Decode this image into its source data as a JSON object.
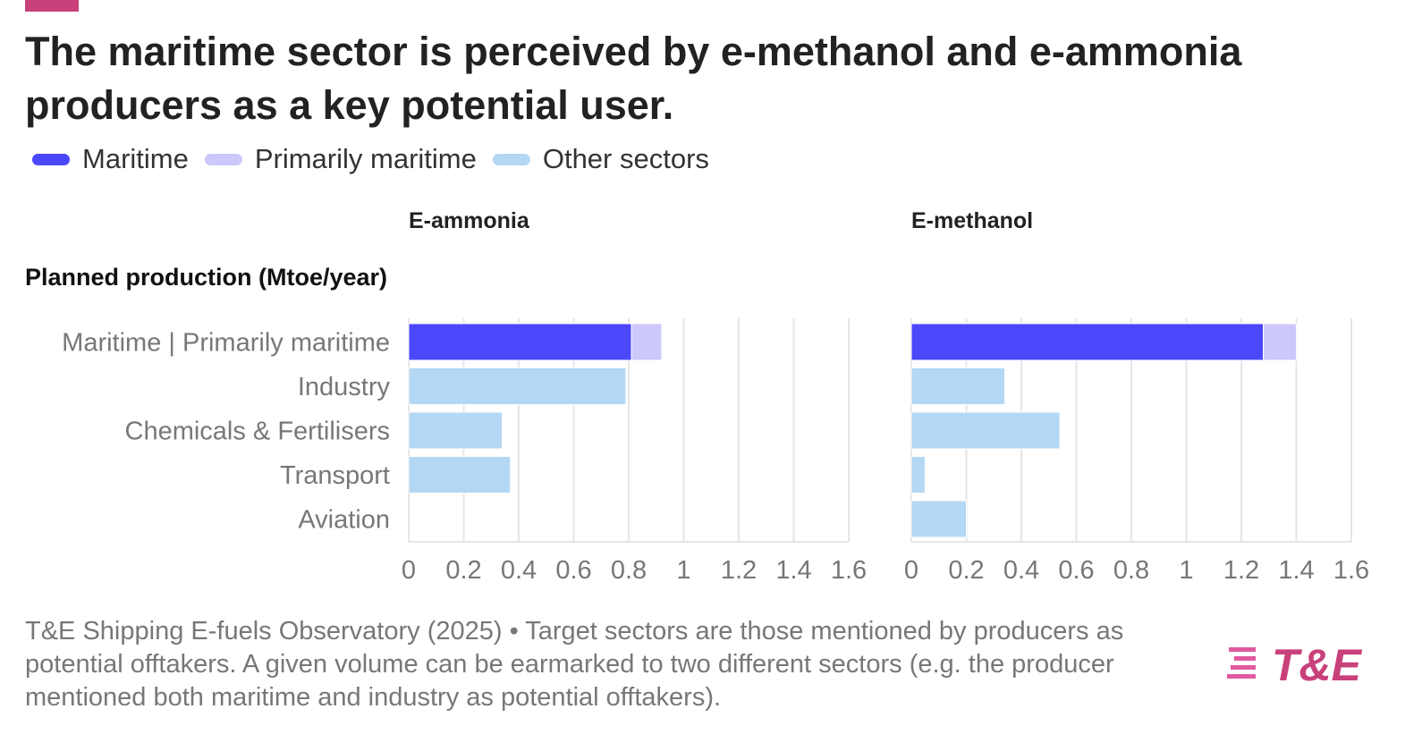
{
  "header": {
    "title": "The maritime sector is perceived by e-methanol and e-ammonia producers as a key potential user."
  },
  "legend": {
    "items": [
      {
        "label": "Maritime",
        "color": "#4b47fb"
      },
      {
        "label": "Primarily maritime",
        "color": "#ccc8fb"
      },
      {
        "label": "Other sectors",
        "color": "#b4d7f3"
      }
    ]
  },
  "colors": {
    "accent": "#c9417a",
    "maritime": "#4b47fb",
    "primarily_maritime": "#ccc8fb",
    "other": "#b4d7f3",
    "grid": "#e6e6e6"
  },
  "subtitle": "Planned production (Mtoe/year)",
  "chart_data": {
    "type": "bar",
    "orientation": "horizontal",
    "stacked": true,
    "axis_label": "Planned production (Mtoe/year)",
    "categories": [
      "Maritime | Primarily maritime",
      "Industry",
      "Chemicals & Fertilisers",
      "Transport",
      "Aviation"
    ],
    "xlim": [
      0,
      1.6
    ],
    "x_ticks": [
      "0",
      "0.2",
      "0.4",
      "0.6",
      "0.8",
      "1",
      "1.2",
      "1.4",
      "1.6"
    ],
    "grid": true,
    "legend_position": "top-left",
    "facets": [
      {
        "title": "E-ammonia",
        "series": [
          {
            "name": "Maritime",
            "values": [
              0.81,
              0,
              0,
              0,
              0
            ]
          },
          {
            "name": "Primarily maritime",
            "values": [
              0.11,
              0,
              0,
              0,
              0
            ]
          },
          {
            "name": "Other sectors",
            "values": [
              0,
              0.79,
              0.34,
              0.37,
              0
            ]
          }
        ]
      },
      {
        "title": "E-methanol",
        "series": [
          {
            "name": "Maritime",
            "values": [
              1.28,
              0,
              0,
              0,
              0
            ]
          },
          {
            "name": "Primarily maritime",
            "values": [
              0.12,
              0,
              0,
              0,
              0
            ]
          },
          {
            "name": "Other sectors",
            "values": [
              0,
              0.34,
              0.54,
              0.05,
              0.2
            ]
          }
        ]
      }
    ]
  },
  "footer": {
    "source": "T&E Shipping E-fuels Observatory (2025) • Target sectors are those mentioned by producers as potential offtakers. A given volume can be earmarked to two different sectors (e.g. the producer mentioned both maritime and industry as potential offtakers)."
  },
  "logo": {
    "text": "T&E"
  }
}
